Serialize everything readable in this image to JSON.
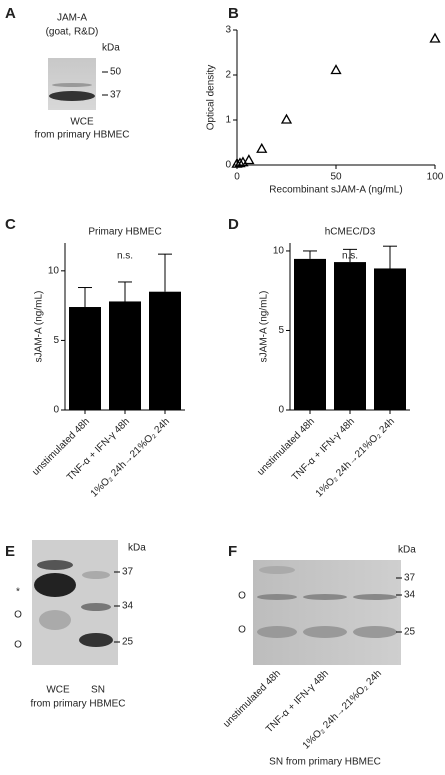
{
  "blots": [
    {
      "panel": "A",
      "title": "JAM-A",
      "subtitle": "(goat, R&D)",
      "unit": "kDa",
      "markers": [
        "50",
        "37"
      ],
      "caption": [
        "WCE",
        "from primary HBMEC"
      ]
    },
    {
      "panel": "E",
      "unit": "kDa",
      "markers": [
        "37",
        "34",
        "25"
      ],
      "symbols": [
        "*",
        "O",
        "O"
      ],
      "lanes": [
        "WCE",
        "SN"
      ],
      "caption": [
        "from primary HBMEC"
      ]
    },
    {
      "panel": "F",
      "unit": "kDa",
      "markers": [
        "37",
        "34",
        "25"
      ],
      "symbols": [
        "O",
        "O"
      ],
      "lanes": [
        "unstimulated 48h",
        "TNF-α + IFN-γ 48h",
        "1%O₂ 24h→21%O₂ 24h"
      ],
      "caption": [
        "SN from primary HBMEC"
      ]
    }
  ],
  "chart_data": [
    {
      "panel": "B",
      "type": "scatter",
      "x_label": "Recombinant sJAM-A (ng/mL)",
      "y_label": "Optical density",
      "x": [
        0,
        1.5,
        3,
        6,
        12.5,
        25,
        50,
        100
      ],
      "values": [
        0.02,
        0.03,
        0.05,
        0.1,
        0.35,
        1.0,
        2.1,
        2.8
      ],
      "xlim": [
        0,
        100
      ],
      "ylim": [
        0,
        3
      ],
      "xticks": [
        0,
        50,
        100
      ],
      "yticks": [
        0,
        1,
        2,
        3
      ],
      "color": "#000000"
    },
    {
      "panel": "C",
      "type": "bar",
      "title": "Primary HBMEC",
      "annotation": "n.s.",
      "y_label": "sJAM-A (ng/mL)",
      "categories": [
        "unstimulated 48h",
        "TNF-α + IFN-γ 48h",
        "1%O₂ 24h→21%O₂ 24h"
      ],
      "values": [
        7.4,
        7.8,
        8.5
      ],
      "errors": [
        1.4,
        1.4,
        2.7
      ],
      "ylim": [
        0,
        12
      ],
      "yticks": [
        0,
        5,
        10
      ],
      "color": "#000000"
    },
    {
      "panel": "D",
      "type": "bar",
      "title": "hCMEC/D3",
      "annotation": "n.s.",
      "y_label": "sJAM-A (ng/mL)",
      "categories": [
        "unstimulated 48h",
        "TNF-α + IFN-γ 48h",
        "1%O₂ 24h→21%O₂ 24h"
      ],
      "values": [
        9.5,
        9.3,
        8.9
      ],
      "errors": [
        0.5,
        0.8,
        1.4
      ],
      "ylim": [
        0,
        10.5
      ],
      "yticks": [
        0,
        5,
        10
      ],
      "color": "#000000"
    }
  ]
}
